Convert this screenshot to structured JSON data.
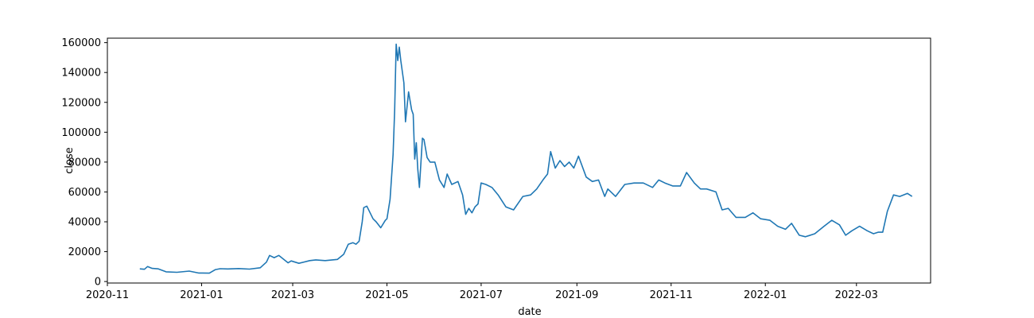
{
  "chart_data": {
    "type": "line",
    "title": "",
    "xlabel": "date",
    "ylabel": "close",
    "xlim": [
      "2020-11-01",
      "2022-04-18"
    ],
    "ylim": [
      -1000,
      163000
    ],
    "grid": false,
    "line_color": "#1f77b4",
    "x_ticks": [
      {
        "value": "2020-11-01",
        "label": "2020-11"
      },
      {
        "value": "2021-01-01",
        "label": "2021-01"
      },
      {
        "value": "2021-03-01",
        "label": "2021-03"
      },
      {
        "value": "2021-05-01",
        "label": "2021-05"
      },
      {
        "value": "2021-07-01",
        "label": "2021-07"
      },
      {
        "value": "2021-09-01",
        "label": "2021-09"
      },
      {
        "value": "2021-11-01",
        "label": "2021-11"
      },
      {
        "value": "2022-01-01",
        "label": "2022-01"
      },
      {
        "value": "2022-03-01",
        "label": "2022-03"
      }
    ],
    "y_ticks": [
      {
        "value": 0,
        "label": "0"
      },
      {
        "value": 20000,
        "label": "20000"
      },
      {
        "value": 40000,
        "label": "40000"
      },
      {
        "value": 60000,
        "label": "60000"
      },
      {
        "value": 80000,
        "label": "80000"
      },
      {
        "value": 100000,
        "label": "100000"
      },
      {
        "value": 120000,
        "label": "120000"
      },
      {
        "value": 140000,
        "label": "140000"
      },
      {
        "value": 160000,
        "label": "160000"
      }
    ],
    "series": [
      {
        "x": [
          "2020-11-22",
          "2020-11-25",
          "2020-11-27",
          "2020-11-30",
          "2020-12-04",
          "2020-12-09",
          "2020-12-16",
          "2020-12-24",
          "2020-12-30",
          "2021-01-06",
          "2021-01-10",
          "2021-01-13",
          "2021-01-18",
          "2021-01-25",
          "2021-02-01",
          "2021-02-08",
          "2021-02-12",
          "2021-02-14",
          "2021-02-17",
          "2021-02-20",
          "2021-02-26",
          "2021-02-28",
          "2021-03-05",
          "2021-03-12",
          "2021-03-16",
          "2021-03-22",
          "2021-03-30",
          "2021-04-03",
          "2021-04-06",
          "2021-04-09",
          "2021-04-11",
          "2021-04-13",
          "2021-04-15",
          "2021-04-16",
          "2021-04-18",
          "2021-04-22",
          "2021-04-24",
          "2021-04-27",
          "2021-04-30",
          "2021-05-01",
          "2021-05-03",
          "2021-05-05",
          "2021-05-06",
          "2021-05-07",
          "2021-05-08",
          "2021-05-09",
          "2021-05-10",
          "2021-05-12",
          "2021-05-13",
          "2021-05-15",
          "2021-05-17",
          "2021-05-18",
          "2021-05-19",
          "2021-05-20",
          "2021-05-21",
          "2021-05-22",
          "2021-05-24",
          "2021-05-25",
          "2021-05-27",
          "2021-05-29",
          "2021-06-01",
          "2021-06-04",
          "2021-06-07",
          "2021-06-09",
          "2021-06-12",
          "2021-06-16",
          "2021-06-19",
          "2021-06-21",
          "2021-06-23",
          "2021-06-25",
          "2021-06-27",
          "2021-06-29",
          "2021-07-01",
          "2021-07-04",
          "2021-07-08",
          "2021-07-12",
          "2021-07-17",
          "2021-07-22",
          "2021-07-28",
          "2021-08-02",
          "2021-08-06",
          "2021-08-10",
          "2021-08-13",
          "2021-08-15",
          "2021-08-18",
          "2021-08-21",
          "2021-08-24",
          "2021-08-27",
          "2021-08-30",
          "2021-09-02",
          "2021-09-07",
          "2021-09-11",
          "2021-09-15",
          "2021-09-19",
          "2021-09-21",
          "2021-09-26",
          "2021-10-02",
          "2021-10-08",
          "2021-10-14",
          "2021-10-20",
          "2021-10-24",
          "2021-10-28",
          "2021-11-02",
          "2021-11-07",
          "2021-11-11",
          "2021-11-16",
          "2021-11-20",
          "2021-11-24",
          "2021-11-30",
          "2021-12-04",
          "2021-12-08",
          "2021-12-13",
          "2021-12-19",
          "2021-12-24",
          "2021-12-29",
          "2022-01-04",
          "2022-01-09",
          "2022-01-14",
          "2022-01-18",
          "2022-01-23",
          "2022-01-27",
          "2022-02-02",
          "2022-02-08",
          "2022-02-13",
          "2022-02-18",
          "2022-02-22",
          "2022-02-26",
          "2022-03-03",
          "2022-03-08",
          "2022-03-12",
          "2022-03-15",
          "2022-03-18",
          "2022-03-21",
          "2022-03-25",
          "2022-03-29",
          "2022-04-03",
          "2022-04-06"
        ],
        "y": [
          8500,
          8200,
          10000,
          8800,
          8500,
          6500,
          6200,
          7000,
          5700,
          5600,
          8000,
          8600,
          8400,
          8700,
          8300,
          9200,
          13000,
          17500,
          16000,
          17500,
          12500,
          13800,
          12200,
          14000,
          14500,
          14000,
          14800,
          18200,
          25000,
          26000,
          25000,
          27000,
          40000,
          49500,
          50500,
          42000,
          40000,
          36000,
          41000,
          42000,
          55000,
          85000,
          115000,
          159000,
          148000,
          157000,
          148000,
          133000,
          107000,
          127000,
          115000,
          112000,
          82000,
          93000,
          75000,
          63000,
          96000,
          95000,
          83000,
          80000,
          80000,
          68000,
          63000,
          72000,
          65000,
          67000,
          58000,
          45000,
          49000,
          46000,
          50000,
          52000,
          66000,
          65000,
          63000,
          58000,
          50000,
          48000,
          57000,
          58000,
          62000,
          68000,
          72000,
          87000,
          76000,
          81000,
          77000,
          80000,
          76000,
          84000,
          70000,
          67000,
          68000,
          57000,
          62000,
          57000,
          65000,
          66000,
          66000,
          63000,
          68000,
          66000,
          64000,
          64000,
          73000,
          66000,
          62000,
          62000,
          60000,
          48000,
          49000,
          43000,
          43000,
          46000,
          42000,
          41000,
          37000,
          35000,
          39000,
          31000,
          30000,
          32000,
          37000,
          41000,
          38000,
          31000,
          34000,
          37000,
          34000,
          32000,
          33000,
          33000,
          47000,
          58000,
          57000,
          59000,
          57000
        ]
      }
    ]
  }
}
